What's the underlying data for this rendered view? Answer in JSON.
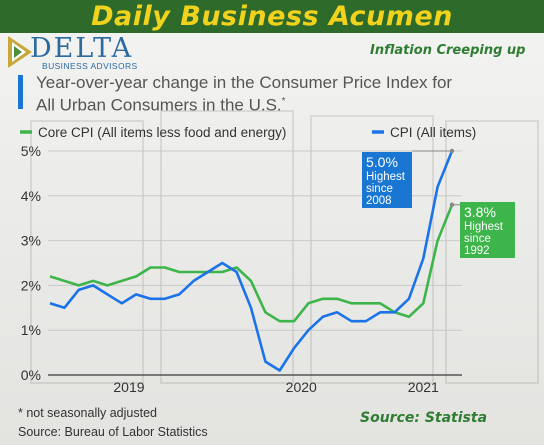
{
  "banner": {
    "title": "Daily Business Acumen"
  },
  "logo": {
    "word": "DELTA",
    "subtitle": "BUSINESS ADVISORS"
  },
  "headline": "Inflation Creeping up",
  "chart_data": {
    "type": "line",
    "title": "Year-over-year change in the Consumer Price Index for All Urban Consumers in the U.S.*",
    "title_line1": "Year-over-year change in the Consumer Price Index for",
    "title_line2": "All Urban Consumers in the U.S.",
    "title_mark": "*",
    "y_ticks": [
      "0%",
      "1%",
      "2%",
      "3%",
      "4%",
      "5%"
    ],
    "ylim": [
      0,
      5
    ],
    "x_ticks": [
      "2019",
      "2020",
      "2021"
    ],
    "grid": true,
    "legend_position": "top",
    "series": [
      {
        "name": "Core CPI (All items less food and energy)",
        "color": "#3db54a",
        "values": [
          2.2,
          2.1,
          2.0,
          2.1,
          2.0,
          2.1,
          2.2,
          2.4,
          2.4,
          2.3,
          2.3,
          2.3,
          2.3,
          2.4,
          2.1,
          1.4,
          1.2,
          1.2,
          1.6,
          1.7,
          1.7,
          1.6,
          1.6,
          1.6,
          1.4,
          1.3,
          1.6,
          3.0,
          3.8
        ]
      },
      {
        "name": "CPI (All items)",
        "color": "#1a73e8",
        "values": [
          1.6,
          1.5,
          1.9,
          2.0,
          1.8,
          1.6,
          1.8,
          1.7,
          1.7,
          1.8,
          2.1,
          2.3,
          2.5,
          2.3,
          1.5,
          0.3,
          0.1,
          0.6,
          1.0,
          1.3,
          1.4,
          1.2,
          1.2,
          1.4,
          1.4,
          1.7,
          2.6,
          4.2,
          5.0
        ]
      }
    ],
    "annotations": [
      {
        "series": "CPI (All items)",
        "value": "5.0%",
        "lines": [
          "Highest",
          "since",
          "2008"
        ],
        "color": "#1976d2"
      },
      {
        "series": "Core CPI (All items less food and energy)",
        "value": "3.8%",
        "lines": [
          "Highest",
          "since",
          "1992"
        ],
        "color": "#3db54a"
      }
    ]
  },
  "footnote": "* not seasonally adjusted",
  "source_note": "Source: Bureau of Labor Statistics",
  "source_credit": "Source: Statista"
}
